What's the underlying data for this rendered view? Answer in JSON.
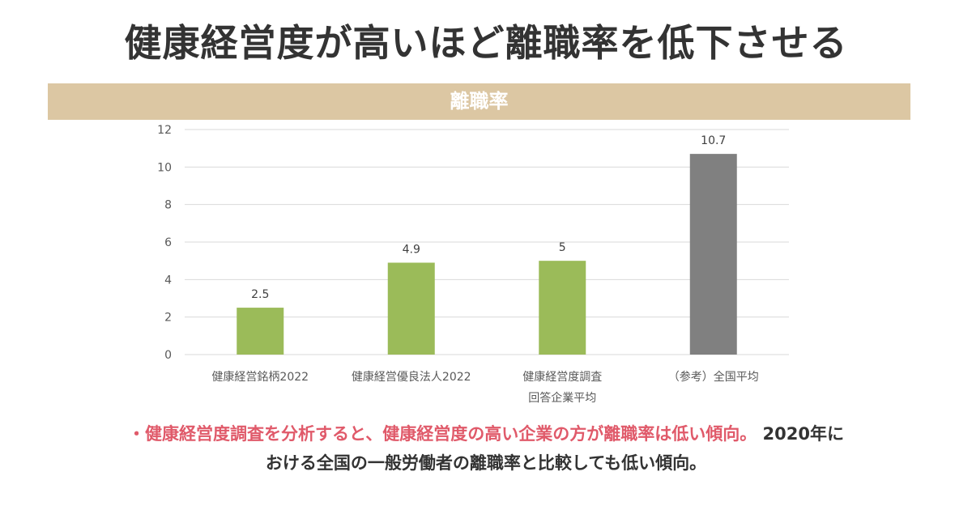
{
  "title": "健康経営度が高いほど離職率を低下させる",
  "banner": "離職率",
  "chart_data": {
    "type": "bar",
    "title": "離職率",
    "categories": [
      [
        "健康経営銘柄2022"
      ],
      [
        "健康経営優良法人2022"
      ],
      [
        "健康経営度調査",
        "回答企業平均"
      ],
      [
        "（参考）全国平均"
      ]
    ],
    "values": [
      2.5,
      4.9,
      5,
      10.7
    ],
    "value_labels": [
      "2.5",
      "4.9",
      "5",
      "10.7"
    ],
    "bar_colors": [
      "#9bbb59",
      "#9bbb59",
      "#9bbb59",
      "#808080"
    ],
    "ylim": [
      0,
      12
    ],
    "yticks": [
      0,
      2,
      4,
      6,
      8,
      10,
      12
    ],
    "grid": true,
    "legend": "none"
  },
  "caption": {
    "highlight": "・健康経営度調査を分析すると、健康経営度の高い企業の方が離職率は低い傾向。",
    "line1_rest": "2020年に",
    "line2": "おける全国の一般労働者の離職率と比較しても低い傾向。"
  },
  "colors": {
    "banner_bg": "#dcc7a3",
    "highlight": "#e05a6a",
    "grid": "#d9d9d9",
    "text": "#333333"
  }
}
